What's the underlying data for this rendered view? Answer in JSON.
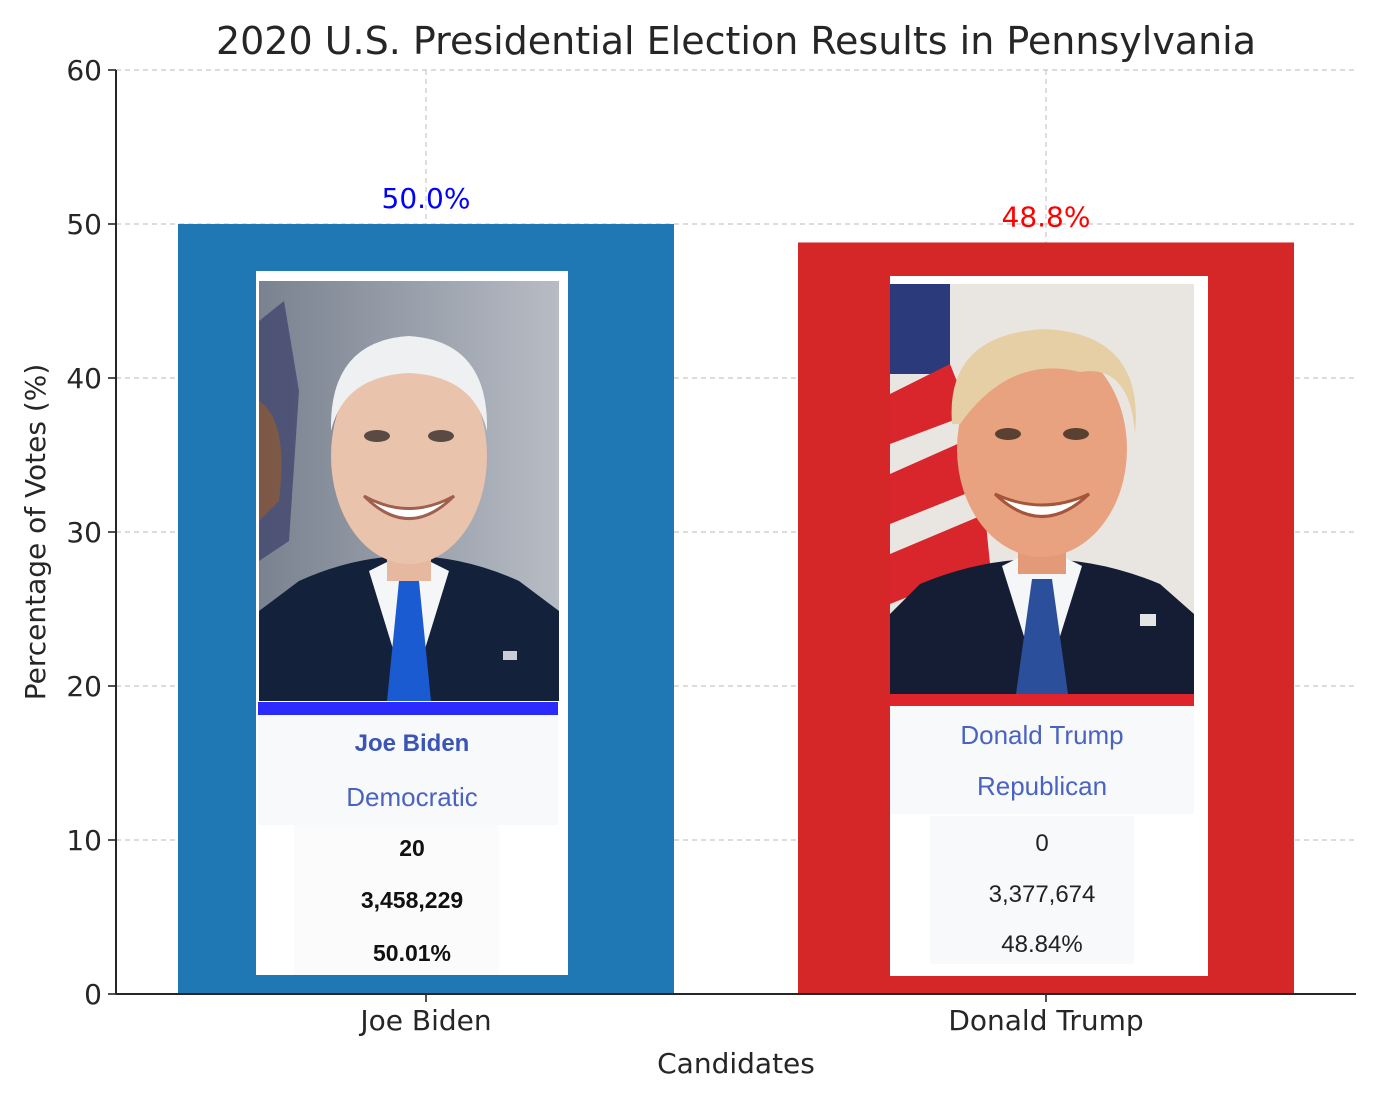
{
  "chart_data": {
    "type": "bar",
    "title": "2020 U.S. Presidential Election Results in Pennsylvania",
    "xlabel": "Candidates",
    "ylabel": "Percentage of Votes (%)",
    "ylim": [
      0,
      60
    ],
    "yticks": [
      "0",
      "10",
      "20",
      "30",
      "40",
      "50",
      "60"
    ],
    "grid": true,
    "categories": [
      "Joe Biden",
      "Donald Trump"
    ],
    "values": [
      50.0,
      48.8
    ],
    "value_labels": [
      "50.0%",
      "48.8%"
    ],
    "bar_colors": [
      "#1f77b4",
      "#d62728"
    ],
    "label_colors": [
      "#0000ff",
      "#ff0000"
    ]
  },
  "cards": [
    {
      "name": "Joe Biden",
      "party": "Democratic",
      "electoral_votes": "20",
      "votes": "3,458,229",
      "percent": "50.01%",
      "accent": "#2b2bff",
      "portrait": "joe-biden-portrait"
    },
    {
      "name": "Donald Trump",
      "party": "Republican",
      "electoral_votes": "0",
      "votes": "3,377,674",
      "percent": "48.84%",
      "accent": "#e0242c",
      "portrait": "donald-trump-portrait"
    }
  ]
}
